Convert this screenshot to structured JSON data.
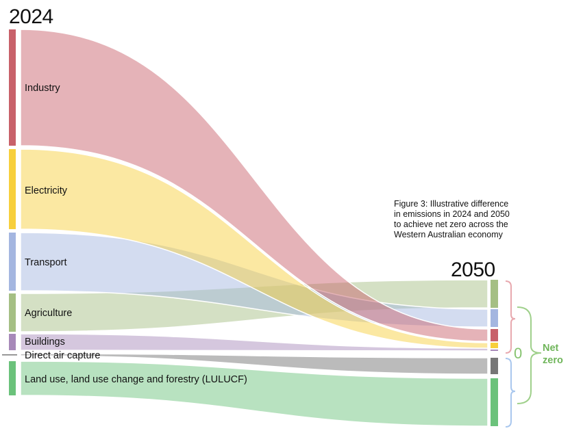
{
  "diagram": {
    "year_start": "2024",
    "year_end": "2050",
    "caption": [
      "Figure 3: Illustrative difference",
      "in emissions in 2024 and 2050",
      "to achieve net zero across the",
      "Western Australian economy"
    ],
    "balance_value": "0",
    "balance_label": [
      "Net",
      "zero"
    ],
    "colors": {
      "industry": "#c8616a",
      "electricity": "#f7cf3c",
      "transport": "#a4b6e0",
      "agriculture": "#a5bf84",
      "buildings": "#a789b9",
      "dac": "#777777",
      "lulucf": "#6bc27b",
      "positive_bracket": "#e8a8ae",
      "net_bracket": "#9fd08b",
      "negative_bracket": "#a9c7ee"
    },
    "categories": [
      {
        "id": "industry",
        "label": "Industry"
      },
      {
        "id": "electricity",
        "label": "Electricity"
      },
      {
        "id": "transport",
        "label": "Transport"
      },
      {
        "id": "agriculture",
        "label": "Agriculture"
      },
      {
        "id": "buildings",
        "label": "Buildings"
      },
      {
        "id": "dac",
        "label": "Direct air capture"
      },
      {
        "id": "lulucf",
        "label": "Land use, land use change and forestry (LULUCF)"
      }
    ]
  }
}
